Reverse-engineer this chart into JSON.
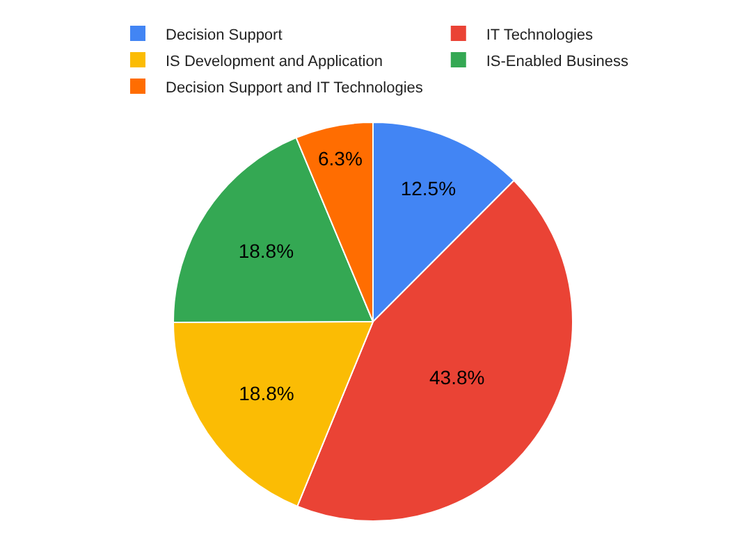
{
  "chart_data": {
    "type": "pie",
    "categories": [
      "Decision Support",
      "IT Technologies",
      "IS Development and Application",
      "IS-Enabled Business",
      "Decision Support and IT Technologies"
    ],
    "values": [
      12.5,
      43.8,
      18.8,
      18.8,
      6.3
    ],
    "colors": [
      "#4285f4",
      "#ea4335",
      "#fbbc04",
      "#34a853",
      "#ff6d01"
    ],
    "value_labels": [
      "12.5%",
      "43.8%",
      "18.8%",
      "18.8%",
      "6.3%"
    ],
    "legend": "top"
  }
}
